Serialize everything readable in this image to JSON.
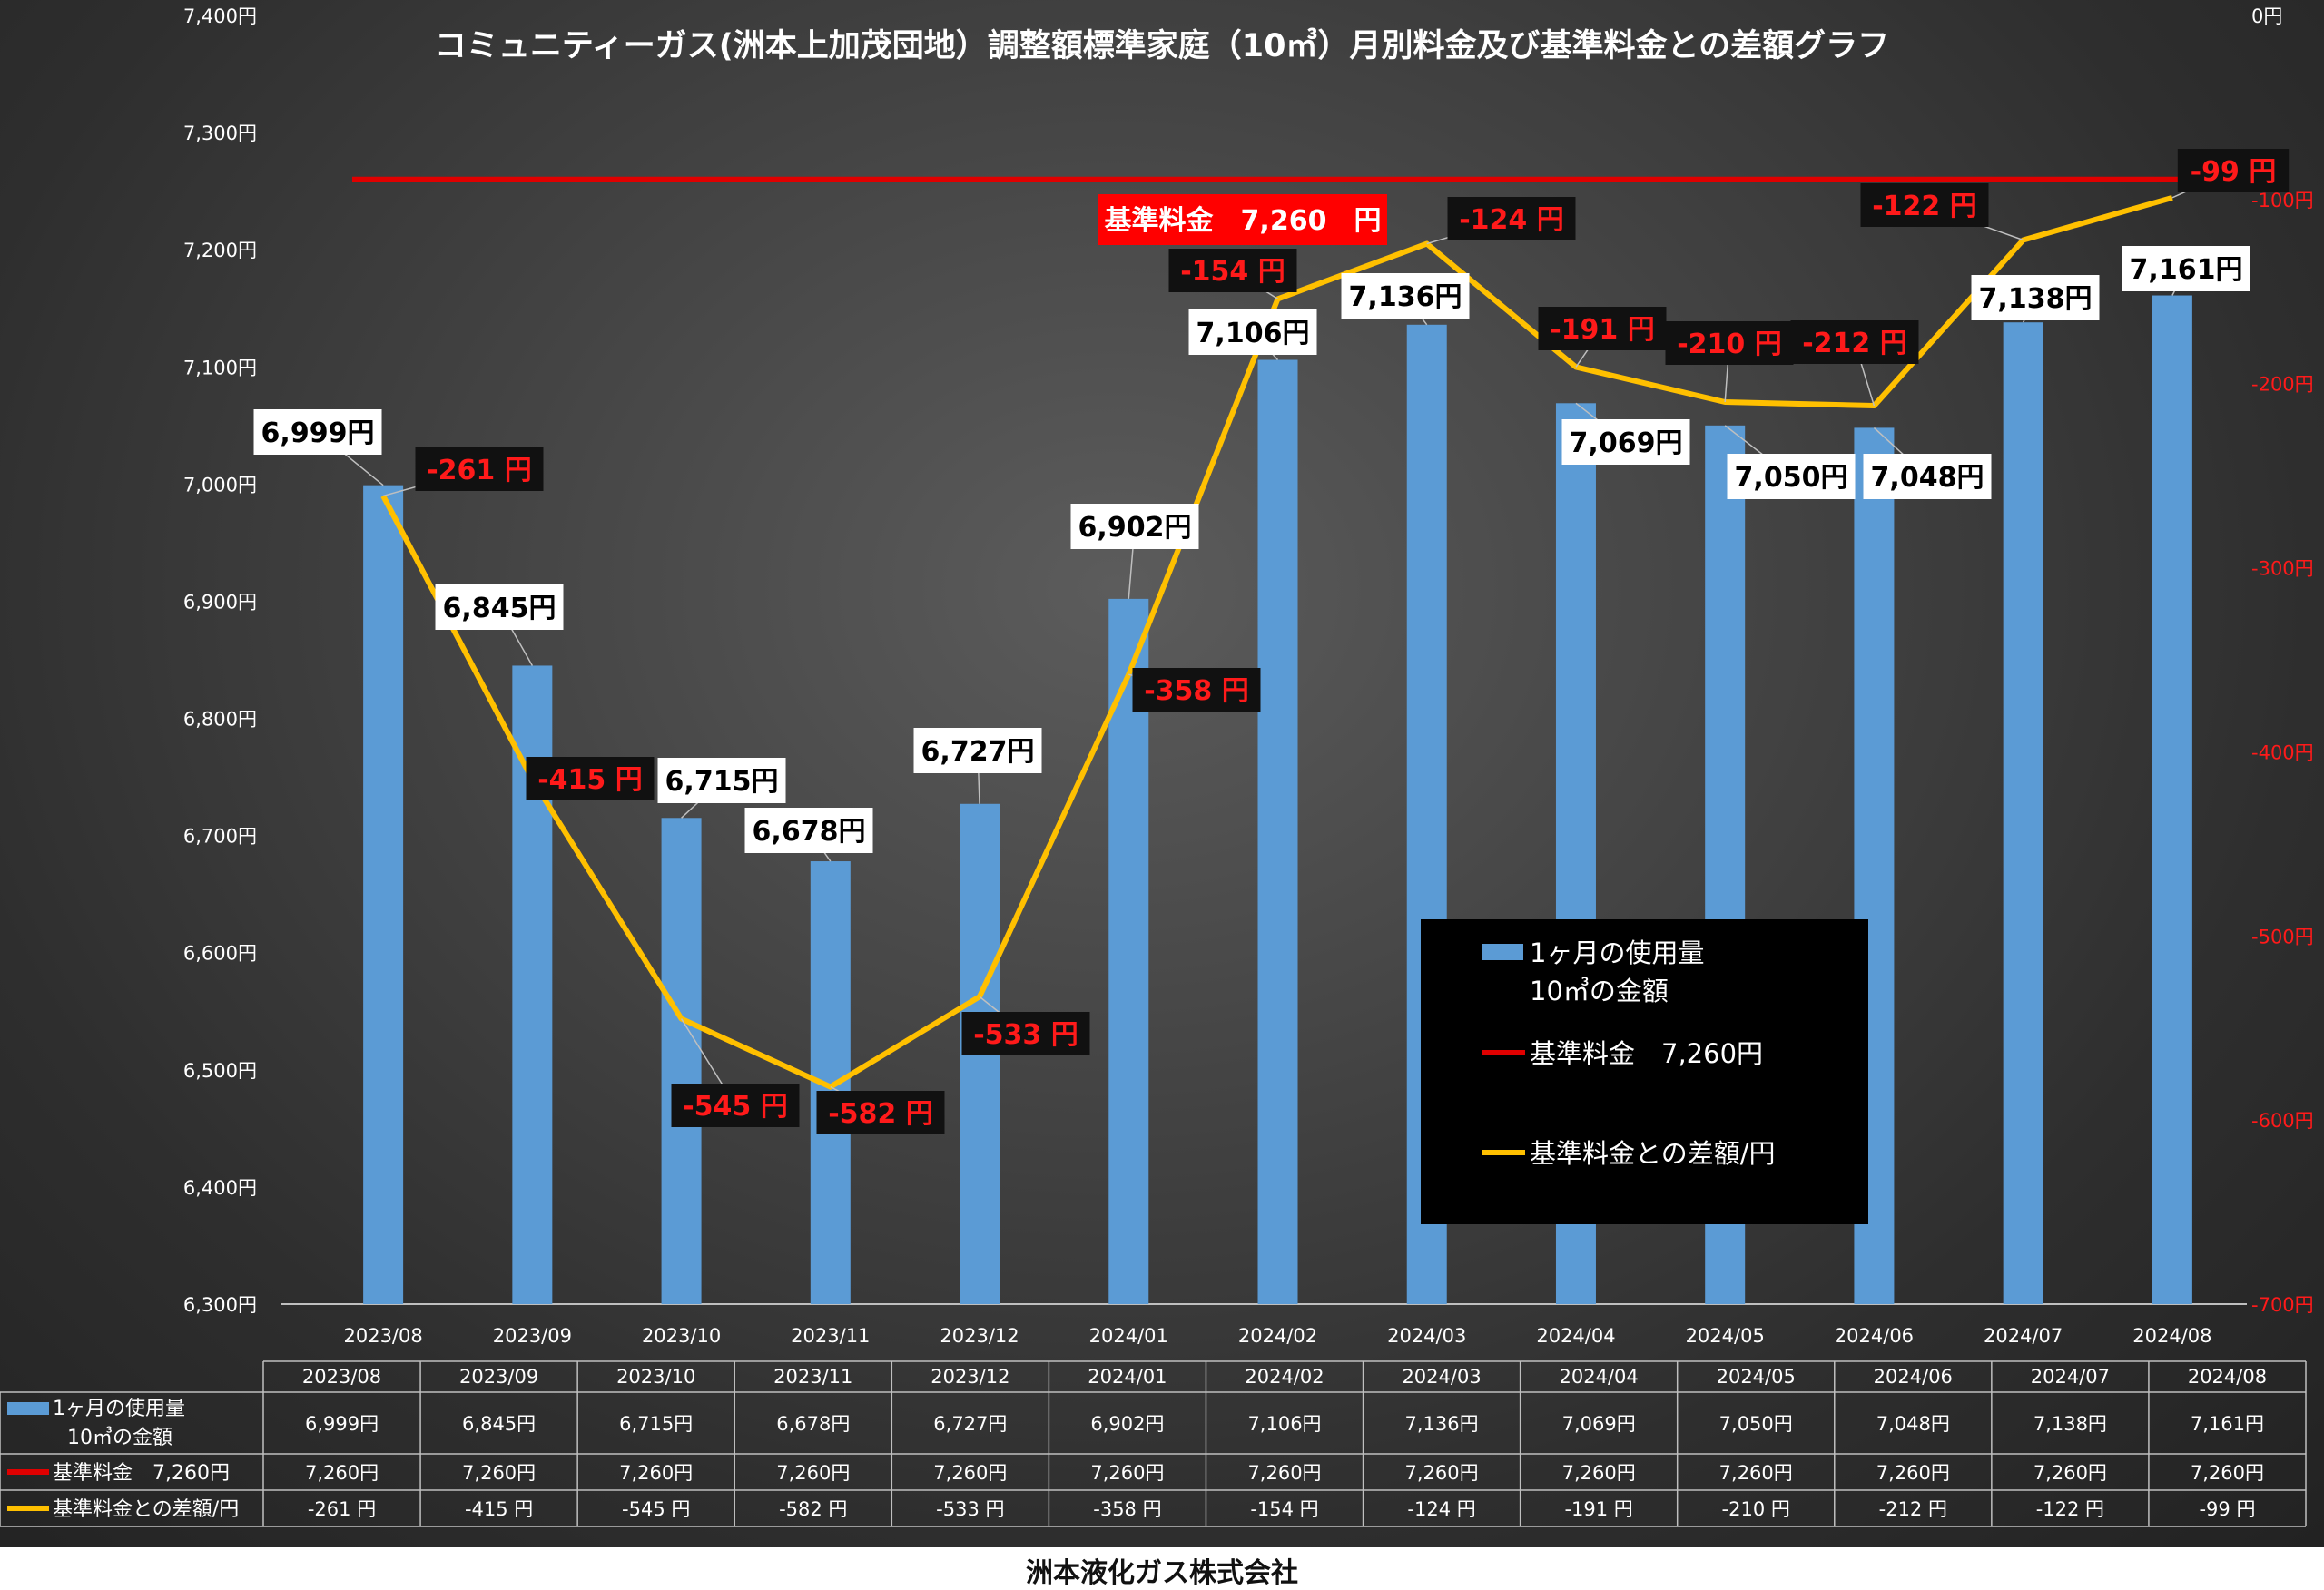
{
  "chart_data": {
    "type": "bar+line",
    "title": "コミュニティーガス(洲本上加茂団地）調整額標準家庭（10㎥）月別料金及び基準料金との差額グラフ",
    "categories": [
      "2023/08",
      "2023/09",
      "2023/10",
      "2023/11",
      "2023/12",
      "2024/01",
      "2024/02",
      "2024/03",
      "2024/04",
      "2024/05",
      "2024/06",
      "2024/07",
      "2024/08"
    ],
    "y_left": {
      "min": 6300,
      "max": 7400,
      "step": 100,
      "unit": "円"
    },
    "y_right": {
      "min": -700,
      "max": 0,
      "step": 100,
      "unit": "円",
      "color": "#ff1a1a"
    },
    "grid": false,
    "series": [
      {
        "name": "1ヶ月の使用量\n10㎥の金額",
        "legend_lines": [
          "1ヶ月の使用量",
          "10㎥の金額"
        ],
        "type": "bar",
        "axis": "left",
        "color": "#5b9bd5",
        "values": [
          6999,
          6845,
          6715,
          6678,
          6727,
          6902,
          7106,
          7136,
          7069,
          7050,
          7048,
          7138,
          7161
        ],
        "labels": [
          "6,999円",
          "6,845円",
          "6,715円",
          "6,678円",
          "6,727円",
          "6,902円",
          "7,106円",
          "7,136円",
          "7,069円",
          "7,050円",
          "7,048円",
          "7,138円",
          "7,161円"
        ],
        "table_cells": [
          "6,999円",
          "6,845円",
          "6,715円",
          "6,678円",
          "6,727円",
          "6,902円",
          "7,106円",
          "7,136円",
          "7,069円",
          "7,050円",
          "7,048円",
          "7,138円",
          "7,161円"
        ]
      },
      {
        "name": "基準料金　7,260円",
        "type": "line",
        "axis": "left",
        "color": "#e00000",
        "values": [
          7260,
          7260,
          7260,
          7260,
          7260,
          7260,
          7260,
          7260,
          7260,
          7260,
          7260,
          7260,
          7260
        ],
        "callout": "基準料金　7,260　円",
        "table_cells": [
          "7,260円",
          "7,260円",
          "7,260円",
          "7,260円",
          "7,260円",
          "7,260円",
          "7,260円",
          "7,260円",
          "7,260円",
          "7,260円",
          "7,260円",
          "7,260円",
          "7,260円"
        ]
      },
      {
        "name": "基準料金との差額/円",
        "type": "line",
        "axis": "right",
        "color": "#ffc000",
        "values": [
          -261,
          -415,
          -545,
          -582,
          -533,
          -358,
          -154,
          -124,
          -191,
          -210,
          -212,
          -122,
          -99
        ],
        "labels": [
          "-261 円",
          "-415 円",
          "-545 円",
          "-582 円",
          "-533 円",
          "-358 円",
          "-154 円",
          "-124 円",
          "-191 円",
          "-210 円",
          "-212 円",
          "-122 円",
          "-99 円"
        ],
        "table_cells": [
          "-261 円",
          "-415 円",
          "-545 円",
          "-582 円",
          "-533 円",
          "-358 円",
          "-154 円",
          "-124 円",
          "-191 円",
          "-210 円",
          "-212 円",
          "-122 円",
          "-99 円"
        ]
      }
    ],
    "legend_position": "center-right"
  },
  "footer": "洲本液化ガス株式会社"
}
